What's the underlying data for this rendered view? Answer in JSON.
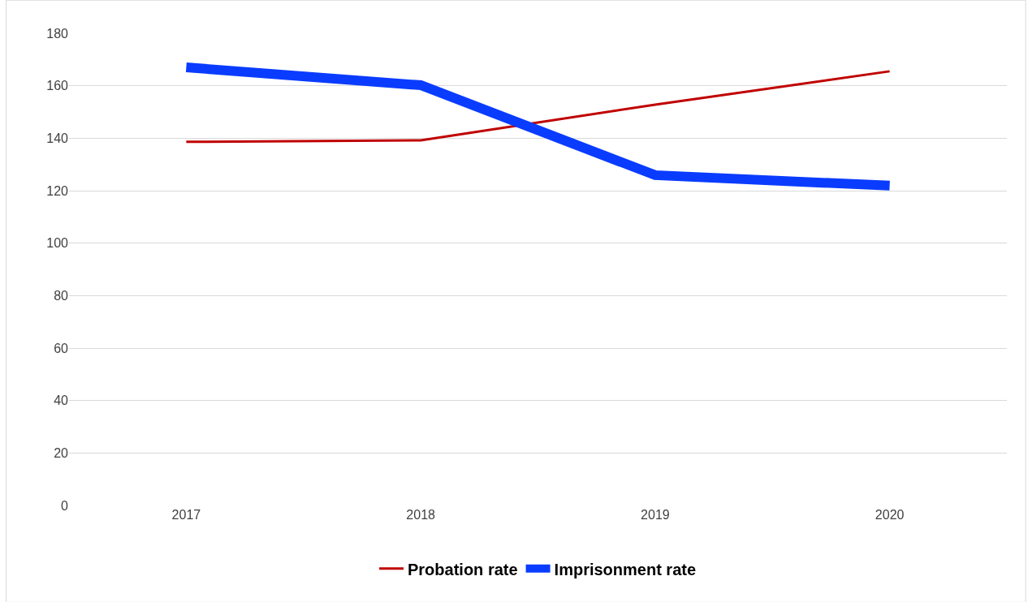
{
  "chart_data": {
    "type": "line",
    "categories": [
      "2017",
      "2018",
      "2019",
      "2020"
    ],
    "series": [
      {
        "name": "Probation rate",
        "color": "#c00000",
        "values": [
          138.6,
          139.2,
          152.8,
          165.5
        ]
      },
      {
        "name": "Imprisonment rate",
        "color": "#0a3cff",
        "values": [
          167,
          160.2,
          125.9,
          121.9
        ]
      }
    ],
    "ylim": [
      0,
      180
    ],
    "yticks": [
      0,
      20,
      40,
      60,
      80,
      100,
      120,
      140,
      160,
      180
    ],
    "grid": "y",
    "legend": "bottom",
    "marker": "none",
    "line_style": "solid"
  }
}
